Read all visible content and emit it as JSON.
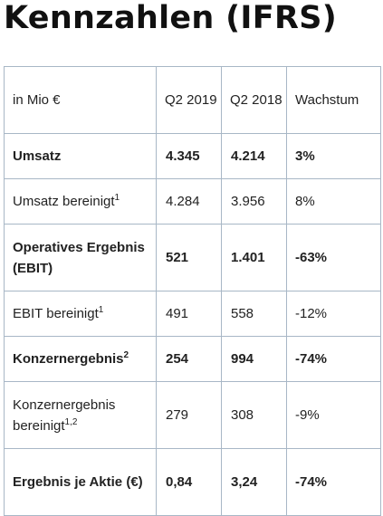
{
  "page": {
    "title": "Kennzahlen (IFRS)"
  },
  "table": {
    "header": {
      "label": "in Mio €",
      "col1": "Q2 2019",
      "col2": "Q2 2018",
      "col3": "Wachstum"
    },
    "rows": [
      {
        "label": "Umsatz",
        "sup": "",
        "q2_2019": "4.345",
        "q2_2018": "4.214",
        "growth": "3%",
        "bold": true
      },
      {
        "label": "Umsatz bereinigt",
        "sup": "1",
        "q2_2019": "4.284",
        "q2_2018": "3.956",
        "growth": "8%",
        "bold": false
      },
      {
        "label": "Operatives Ergebnis (EBIT)",
        "sup": "",
        "q2_2019": "521",
        "q2_2018": "1.401",
        "growth": "-63%",
        "bold": true
      },
      {
        "label": "EBIT bereinigt",
        "sup": "1",
        "q2_2019": "491",
        "q2_2018": "558",
        "growth": "-12%",
        "bold": false
      },
      {
        "label": "Konzernergebnis",
        "sup": "2",
        "q2_2019": "254",
        "q2_2018": "994",
        "growth": "-74%",
        "bold": true
      },
      {
        "label": "Konzernergebnis bereinigt",
        "sup": "1,2",
        "q2_2019": "279",
        "q2_2018": "308",
        "growth": "-9%",
        "bold": false
      },
      {
        "label": "Ergebnis je Aktie (€)",
        "sup": "",
        "q2_2019": "0,84",
        "q2_2018": "3,24",
        "growth": "-74%",
        "bold": true
      }
    ]
  }
}
